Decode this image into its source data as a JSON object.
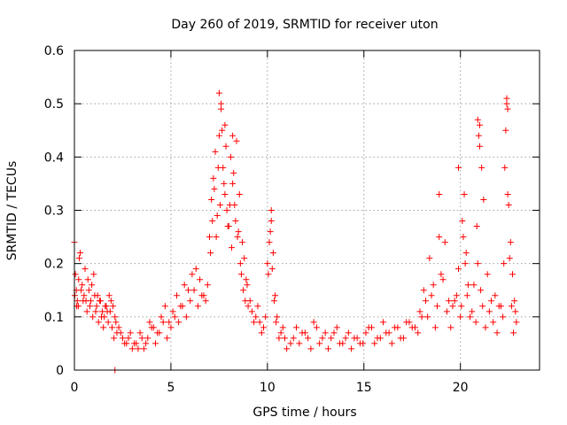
{
  "chart_data": {
    "type": "scatter",
    "title": "Day 260 of 2019, SRMTID for receiver uton",
    "xlabel": "GPS time / hours",
    "ylabel": "SRMTID / TECUs",
    "xlim": [
      0,
      24.1
    ],
    "ylim": [
      0,
      0.6
    ],
    "xticks": [
      0,
      5,
      10,
      15,
      20
    ],
    "yticks": [
      0,
      0.1,
      0.2,
      0.3,
      0.4,
      0.5,
      0.6
    ],
    "ytick_labels": [
      "0",
      "0.1",
      "0.2",
      "0.3",
      "0.4",
      "0.5",
      "0.6"
    ],
    "grid": true,
    "marker": "+",
    "color": "#ff0000",
    "series": [
      {
        "name": "SRMTID",
        "x": [
          0.0,
          0.05,
          0.1,
          0.15,
          0.2,
          0.25,
          0.3,
          0.4,
          0.5,
          0.6,
          0.7,
          0.8,
          0.9,
          1.0,
          1.1,
          1.2,
          1.3,
          1.4,
          1.5,
          1.6,
          1.7,
          1.8,
          1.9,
          2.0,
          2.1,
          2.2,
          2.3,
          2.5,
          2.7,
          2.9,
          3.1,
          3.3,
          3.5,
          3.7,
          3.9,
          4.1,
          4.3,
          4.5,
          4.7,
          4.9,
          5.1,
          5.3,
          5.5,
          5.7,
          5.9,
          6.1,
          6.3,
          6.5,
          6.7,
          6.9,
          7.0,
          7.1,
          7.2,
          7.3,
          7.4,
          7.5,
          7.6,
          7.7,
          7.8,
          7.9,
          8.0,
          8.1,
          8.2,
          8.3,
          8.4,
          8.5,
          8.6,
          8.7,
          8.8,
          8.9,
          9.0,
          9.2,
          9.4,
          9.6,
          9.8,
          10.0,
          10.1,
          10.2,
          10.3,
          10.4,
          10.5,
          10.7,
          10.9,
          11.2,
          11.5,
          11.8,
          12.1,
          12.4,
          12.7,
          13.0,
          13.3,
          13.6,
          13.9,
          14.2,
          14.5,
          14.8,
          15.1,
          15.4,
          15.7,
          16.0,
          16.3,
          16.6,
          16.9,
          17.2,
          17.5,
          17.8,
          18.0,
          18.2,
          18.4,
          18.6,
          18.8,
          19.0,
          19.2,
          19.4,
          19.6,
          19.8,
          20.0,
          20.1,
          20.2,
          20.3,
          20.4,
          20.6,
          20.8,
          20.9,
          21.0,
          21.1,
          21.2,
          21.4,
          21.6,
          21.8,
          22.0,
          22.2,
          22.3,
          22.4,
          22.5,
          22.6,
          22.7,
          22.8,
          22.9,
          0.02,
          0.12,
          0.22,
          0.35,
          0.45,
          0.55,
          0.65,
          0.75,
          0.85,
          0.95,
          1.05,
          1.15,
          1.25,
          1.35,
          1.45,
          1.55,
          1.65,
          1.75,
          1.85,
          1.95,
          2.05,
          2.15,
          2.4,
          2.6,
          2.8,
          3.0,
          3.2,
          3.4,
          3.6,
          3.8,
          4.0,
          4.2,
          4.4,
          4.6,
          4.8,
          5.0,
          5.2,
          5.4,
          5.6,
          5.8,
          6.0,
          6.2,
          6.4,
          6.6,
          6.8,
          7.05,
          7.15,
          7.25,
          7.35,
          7.45,
          7.55,
          7.65,
          7.75,
          7.85,
          7.95,
          8.05,
          8.15,
          8.25,
          8.35,
          8.45,
          8.55,
          8.65,
          8.75,
          8.85,
          8.95,
          9.1,
          9.3,
          9.5,
          9.7,
          9.9,
          10.05,
          10.15,
          10.25,
          10.35,
          10.45,
          10.6,
          10.8,
          11.0,
          11.35,
          11.65,
          11.95,
          12.25,
          12.55,
          12.85,
          13.15,
          13.45,
          13.75,
          14.05,
          14.35,
          14.65,
          14.95,
          15.25,
          15.55,
          15.85,
          16.15,
          16.45,
          16.75,
          17.05,
          17.35,
          17.65,
          17.9,
          18.1,
          18.3,
          18.5,
          18.7,
          18.9,
          19.1,
          19.3,
          19.5,
          19.7,
          19.9,
          20.05,
          20.15,
          20.25,
          20.35,
          20.5,
          20.7,
          20.85,
          20.95,
          21.05,
          21.15,
          21.3,
          21.5,
          21.7,
          21.9,
          22.1,
          22.25,
          22.35,
          22.45,
          22.55,
          22.65,
          22.75,
          22.85,
          2.1,
          7.5,
          7.6,
          7.8,
          8.2,
          22.4,
          22.45,
          20.9,
          21.0,
          19.9,
          18.9,
          10.2
        ],
        "y": [
          0.24,
          0.18,
          0.15,
          0.13,
          0.12,
          0.21,
          0.22,
          0.16,
          0.14,
          0.13,
          0.17,
          0.12,
          0.16,
          0.18,
          0.11,
          0.14,
          0.13,
          0.1,
          0.08,
          0.12,
          0.11,
          0.14,
          0.13,
          0.12,
          0.1,
          0.07,
          0.08,
          0.06,
          0.05,
          0.07,
          0.05,
          0.04,
          0.06,
          0.05,
          0.09,
          0.08,
          0.07,
          0.1,
          0.12,
          0.09,
          0.11,
          0.14,
          0.12,
          0.16,
          0.15,
          0.18,
          0.19,
          0.17,
          0.14,
          0.16,
          0.25,
          0.32,
          0.36,
          0.41,
          0.29,
          0.44,
          0.49,
          0.38,
          0.33,
          0.3,
          0.27,
          0.4,
          0.35,
          0.31,
          0.43,
          0.26,
          0.2,
          0.24,
          0.21,
          0.17,
          0.12,
          0.11,
          0.1,
          0.09,
          0.08,
          0.2,
          0.24,
          0.28,
          0.22,
          0.14,
          0.1,
          0.07,
          0.06,
          0.05,
          0.08,
          0.07,
          0.06,
          0.09,
          0.05,
          0.07,
          0.06,
          0.08,
          0.05,
          0.07,
          0.06,
          0.05,
          0.07,
          0.08,
          0.06,
          0.09,
          0.07,
          0.08,
          0.06,
          0.09,
          0.08,
          0.07,
          0.1,
          0.13,
          0.21,
          0.16,
          0.12,
          0.18,
          0.24,
          0.13,
          0.12,
          0.14,
          0.1,
          0.28,
          0.33,
          0.22,
          0.16,
          0.11,
          0.09,
          0.2,
          0.42,
          0.38,
          0.32,
          0.18,
          0.13,
          0.14,
          0.12,
          0.1,
          0.38,
          0.5,
          0.31,
          0.24,
          0.18,
          0.13,
          0.09,
          0.14,
          0.12,
          0.17,
          0.15,
          0.13,
          0.19,
          0.11,
          0.15,
          0.13,
          0.1,
          0.14,
          0.12,
          0.09,
          0.13,
          0.11,
          0.1,
          0.12,
          0.09,
          0.11,
          0.08,
          0.06,
          0.09,
          0.07,
          0.05,
          0.06,
          0.04,
          0.05,
          0.07,
          0.04,
          0.06,
          0.08,
          0.05,
          0.07,
          0.09,
          0.06,
          0.08,
          0.1,
          0.09,
          0.12,
          0.1,
          0.13,
          0.15,
          0.12,
          0.14,
          0.13,
          0.22,
          0.28,
          0.34,
          0.25,
          0.38,
          0.31,
          0.45,
          0.35,
          0.42,
          0.27,
          0.31,
          0.23,
          0.37,
          0.28,
          0.25,
          0.33,
          0.18,
          0.15,
          0.13,
          0.16,
          0.13,
          0.09,
          0.12,
          0.07,
          0.1,
          0.18,
          0.26,
          0.19,
          0.13,
          0.09,
          0.06,
          0.08,
          0.04,
          0.06,
          0.05,
          0.07,
          0.04,
          0.08,
          0.06,
          0.04,
          0.07,
          0.05,
          0.06,
          0.04,
          0.06,
          0.05,
          0.08,
          0.05,
          0.06,
          0.07,
          0.05,
          0.08,
          0.06,
          0.09,
          0.08,
          0.11,
          0.15,
          0.1,
          0.14,
          0.08,
          0.25,
          0.17,
          0.11,
          0.08,
          0.13,
          0.19,
          0.12,
          0.25,
          0.2,
          0.14,
          0.1,
          0.16,
          0.27,
          0.44,
          0.15,
          0.12,
          0.08,
          0.11,
          0.09,
          0.07,
          0.12,
          0.2,
          0.45,
          0.33,
          0.21,
          0.12,
          0.07,
          0.11,
          0.0,
          0.52,
          0.5,
          0.46,
          0.44,
          0.51,
          0.49,
          0.47,
          0.46,
          0.38,
          0.33,
          0.3
        ]
      }
    ]
  }
}
